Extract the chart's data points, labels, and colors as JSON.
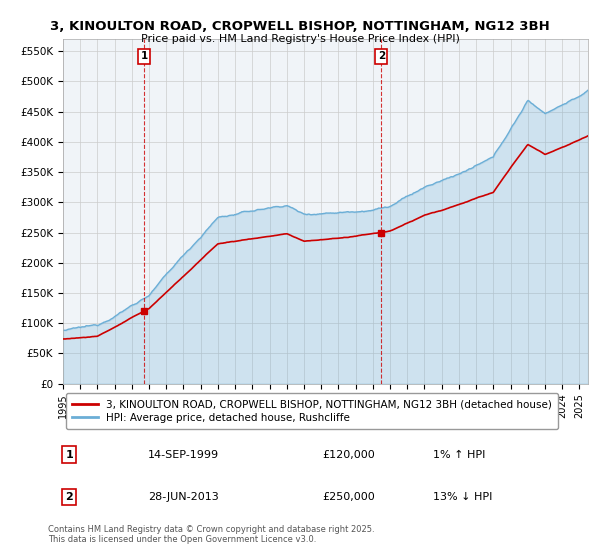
{
  "title": "3, KINOULTON ROAD, CROPWELL BISHOP, NOTTINGHAM, NG12 3BH",
  "subtitle": "Price paid vs. HM Land Registry's House Price Index (HPI)",
  "ylim": [
    0,
    570000
  ],
  "yticks": [
    0,
    50000,
    100000,
    150000,
    200000,
    250000,
    300000,
    350000,
    400000,
    450000,
    500000,
    550000
  ],
  "ytick_labels": [
    "£0",
    "£50K",
    "£100K",
    "£150K",
    "£200K",
    "£250K",
    "£300K",
    "£350K",
    "£400K",
    "£450K",
    "£500K",
    "£550K"
  ],
  "xlim_start": 1995,
  "xlim_end": 2025.5,
  "sale1_date": 1999.71,
  "sale1_price": 120000,
  "sale1_date_str": "14-SEP-1999",
  "sale1_pct": "1% ↑ HPI",
  "sale2_date": 2013.49,
  "sale2_price": 250000,
  "sale2_date_str": "28-JUN-2013",
  "sale2_pct": "13% ↓ HPI",
  "hpi_color": "#6baed6",
  "sale_color": "#cc0000",
  "bg_color": "#ffffff",
  "chart_bg": "#f0f4f8",
  "grid_color": "#cccccc",
  "legend1": "3, KINOULTON ROAD, CROPWELL BISHOP, NOTTINGHAM, NG12 3BH (detached house)",
  "legend2": "HPI: Average price, detached house, Rushcliffe",
  "sale1_price_str": "£120,000",
  "sale2_price_str": "£250,000",
  "footer": "Contains HM Land Registry data © Crown copyright and database right 2025.\nThis data is licensed under the Open Government Licence v3.0."
}
